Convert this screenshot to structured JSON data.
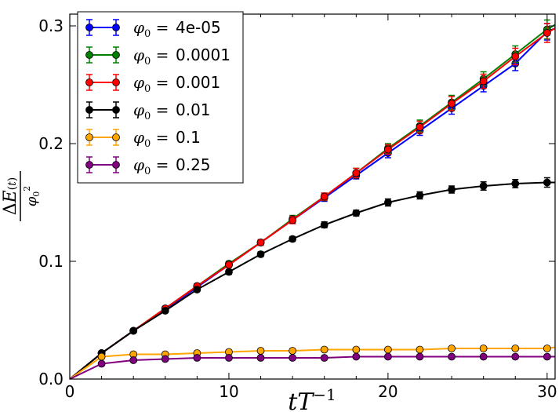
{
  "chart_data": {
    "type": "line",
    "title": "",
    "xlabel": "tT⁻¹",
    "ylabel": "ΔE(t) / φ₀²",
    "xlim": [
      0,
      30.5
    ],
    "ylim": [
      0,
      0.31
    ],
    "x_ticks": [
      0,
      10,
      20,
      30
    ],
    "x_tick_labels": [
      "0",
      "10",
      "20",
      "30"
    ],
    "y_ticks": [
      0.0,
      0.1,
      0.2,
      0.3
    ],
    "y_tick_labels": [
      "0.0",
      "0.1",
      "0.2",
      "0.3"
    ],
    "grid": false,
    "legend_position": "top-left",
    "x": [
      0,
      2,
      4,
      6,
      8,
      10,
      12,
      14,
      16,
      18,
      20,
      22,
      24,
      26,
      28,
      30,
      30.5
    ],
    "series": [
      {
        "name": "φ₀ = 4e-05",
        "legend_prefix": "φ₀ =",
        "legend_value": "4e-05",
        "color": "#0000ff",
        "values": [
          0,
          0.022,
          0.041,
          0.059,
          0.078,
          0.097,
          0.116,
          0.135,
          0.154,
          0.173,
          0.192,
          0.211,
          0.23,
          0.249,
          0.268,
          0.295,
          0.298
        ],
        "errors": [
          0,
          0.001,
          0.001,
          0.001,
          0.0015,
          0.002,
          0.002,
          0.0025,
          0.003,
          0.003,
          0.004,
          0.004,
          0.005,
          0.005,
          0.006,
          0.007,
          0
        ]
      },
      {
        "name": "φ₀ = 0.0001",
        "legend_prefix": "φ₀ =",
        "legend_value": "0.0001",
        "color": "#008000",
        "values": [
          0,
          0.022,
          0.041,
          0.06,
          0.079,
          0.098,
          0.116,
          0.136,
          0.155,
          0.175,
          0.196,
          0.215,
          0.235,
          0.255,
          0.276,
          0.297,
          0.301
        ],
        "errors": [
          0,
          0.001,
          0.001,
          0.0015,
          0.002,
          0.002,
          0.0025,
          0.003,
          0.003,
          0.004,
          0.004,
          0.005,
          0.006,
          0.006,
          0.007,
          0.008,
          0
        ]
      },
      {
        "name": "φ₀ = 0.001",
        "legend_prefix": "φ₀ =",
        "legend_value": "0.001",
        "color": "#ff0000",
        "values": [
          0,
          0.022,
          0.041,
          0.06,
          0.079,
          0.097,
          0.116,
          0.135,
          0.155,
          0.175,
          0.195,
          0.214,
          0.234,
          0.253,
          0.274,
          0.294,
          0.298
        ],
        "errors": [
          0,
          0.001,
          0.001,
          0.0015,
          0.002,
          0.002,
          0.0025,
          0.003,
          0.003,
          0.004,
          0.004,
          0.005,
          0.006,
          0.006,
          0.007,
          0.008,
          0
        ]
      },
      {
        "name": "φ₀ = 0.01",
        "legend_prefix": "φ₀ =",
        "legend_value": "0.01",
        "color": "#000000",
        "values": [
          0,
          0.022,
          0.041,
          0.058,
          0.076,
          0.091,
          0.106,
          0.119,
          0.131,
          0.141,
          0.15,
          0.156,
          0.161,
          0.164,
          0.166,
          0.167,
          0.167
        ],
        "errors": [
          0,
          0.001,
          0.001,
          0.0015,
          0.0015,
          0.002,
          0.002,
          0.002,
          0.0025,
          0.0025,
          0.003,
          0.003,
          0.003,
          0.0035,
          0.0035,
          0.004,
          0
        ]
      },
      {
        "name": "φ₀ = 0.1",
        "legend_prefix": "φ₀ =",
        "legend_value": "0.1",
        "color": "#ffa500",
        "values": [
          0,
          0.019,
          0.021,
          0.021,
          0.022,
          0.023,
          0.024,
          0.024,
          0.025,
          0.025,
          0.025,
          0.025,
          0.026,
          0.026,
          0.026,
          0.026,
          0.027
        ],
        "errors": [
          0,
          0.0005,
          0.0005,
          0.0005,
          0.0005,
          0.0005,
          0.0005,
          0.0005,
          0.0005,
          0.0005,
          0.0005,
          0.0005,
          0.0005,
          0.0005,
          0.0005,
          0.0005,
          0
        ]
      },
      {
        "name": "φ₀ = 0.25",
        "legend_prefix": "φ₀ =",
        "legend_value": "0.25",
        "color": "#800080",
        "values": [
          0,
          0.013,
          0.016,
          0.017,
          0.018,
          0.018,
          0.018,
          0.018,
          0.018,
          0.019,
          0.019,
          0.019,
          0.019,
          0.019,
          0.019,
          0.019,
          0.019
        ],
        "errors": [
          0,
          0.0005,
          0.0005,
          0.0005,
          0.0005,
          0.0005,
          0.0005,
          0.0005,
          0.0005,
          0.0005,
          0.0005,
          0.0005,
          0.0005,
          0.0005,
          0.0005,
          0.0005,
          0
        ]
      }
    ]
  }
}
